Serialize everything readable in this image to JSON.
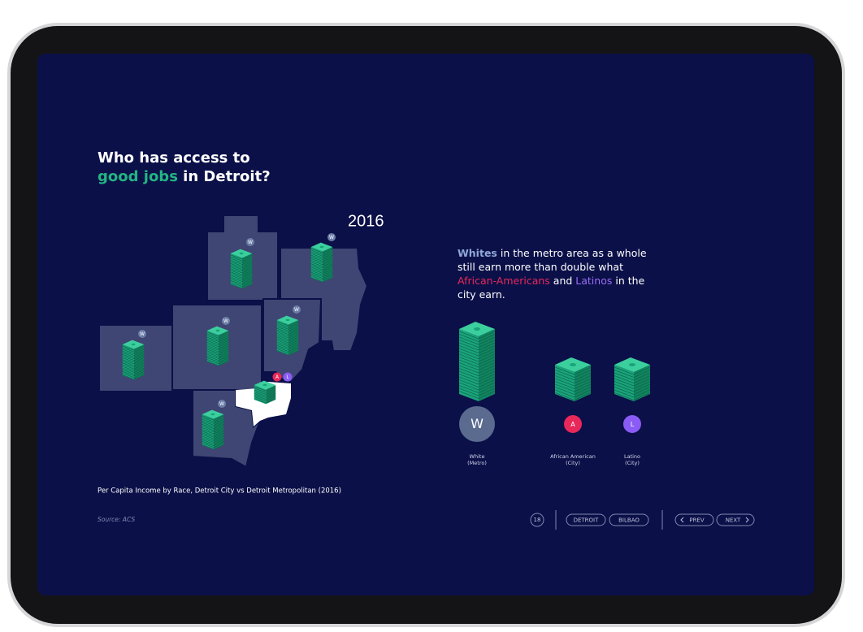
{
  "header": {
    "title_line1": "Who has access to",
    "title_highlight": "good jobs",
    "title_rest": " in Detroit?"
  },
  "map": {
    "year": "2016",
    "county_badges": [
      "W",
      "W",
      "W",
      "W",
      "W",
      "W"
    ],
    "city_badges": [
      "A",
      "L"
    ]
  },
  "description": {
    "part1": "Whites",
    "part2": " in the metro area as a whole still earn more than double what ",
    "part3": "African-Americans",
    "part4": " and ",
    "part5": "Latinos",
    "part6": " in the city earn."
  },
  "legend": [
    {
      "badge": "W",
      "label": [
        "White",
        "(Metro)"
      ]
    },
    {
      "badge": "A",
      "label": [
        "African American",
        "(City)"
      ]
    },
    {
      "badge": "L",
      "label": [
        "Latino",
        "(City)"
      ]
    }
  ],
  "caption": "Per Capita Income by Race, Detroit City vs Detroit Metropolitan (2016)",
  "source": "Source: ACS",
  "footer": {
    "page": "18",
    "links": [
      "DETROIT",
      "BILBAO"
    ],
    "prev": "PREV",
    "next": "NEXT"
  }
}
